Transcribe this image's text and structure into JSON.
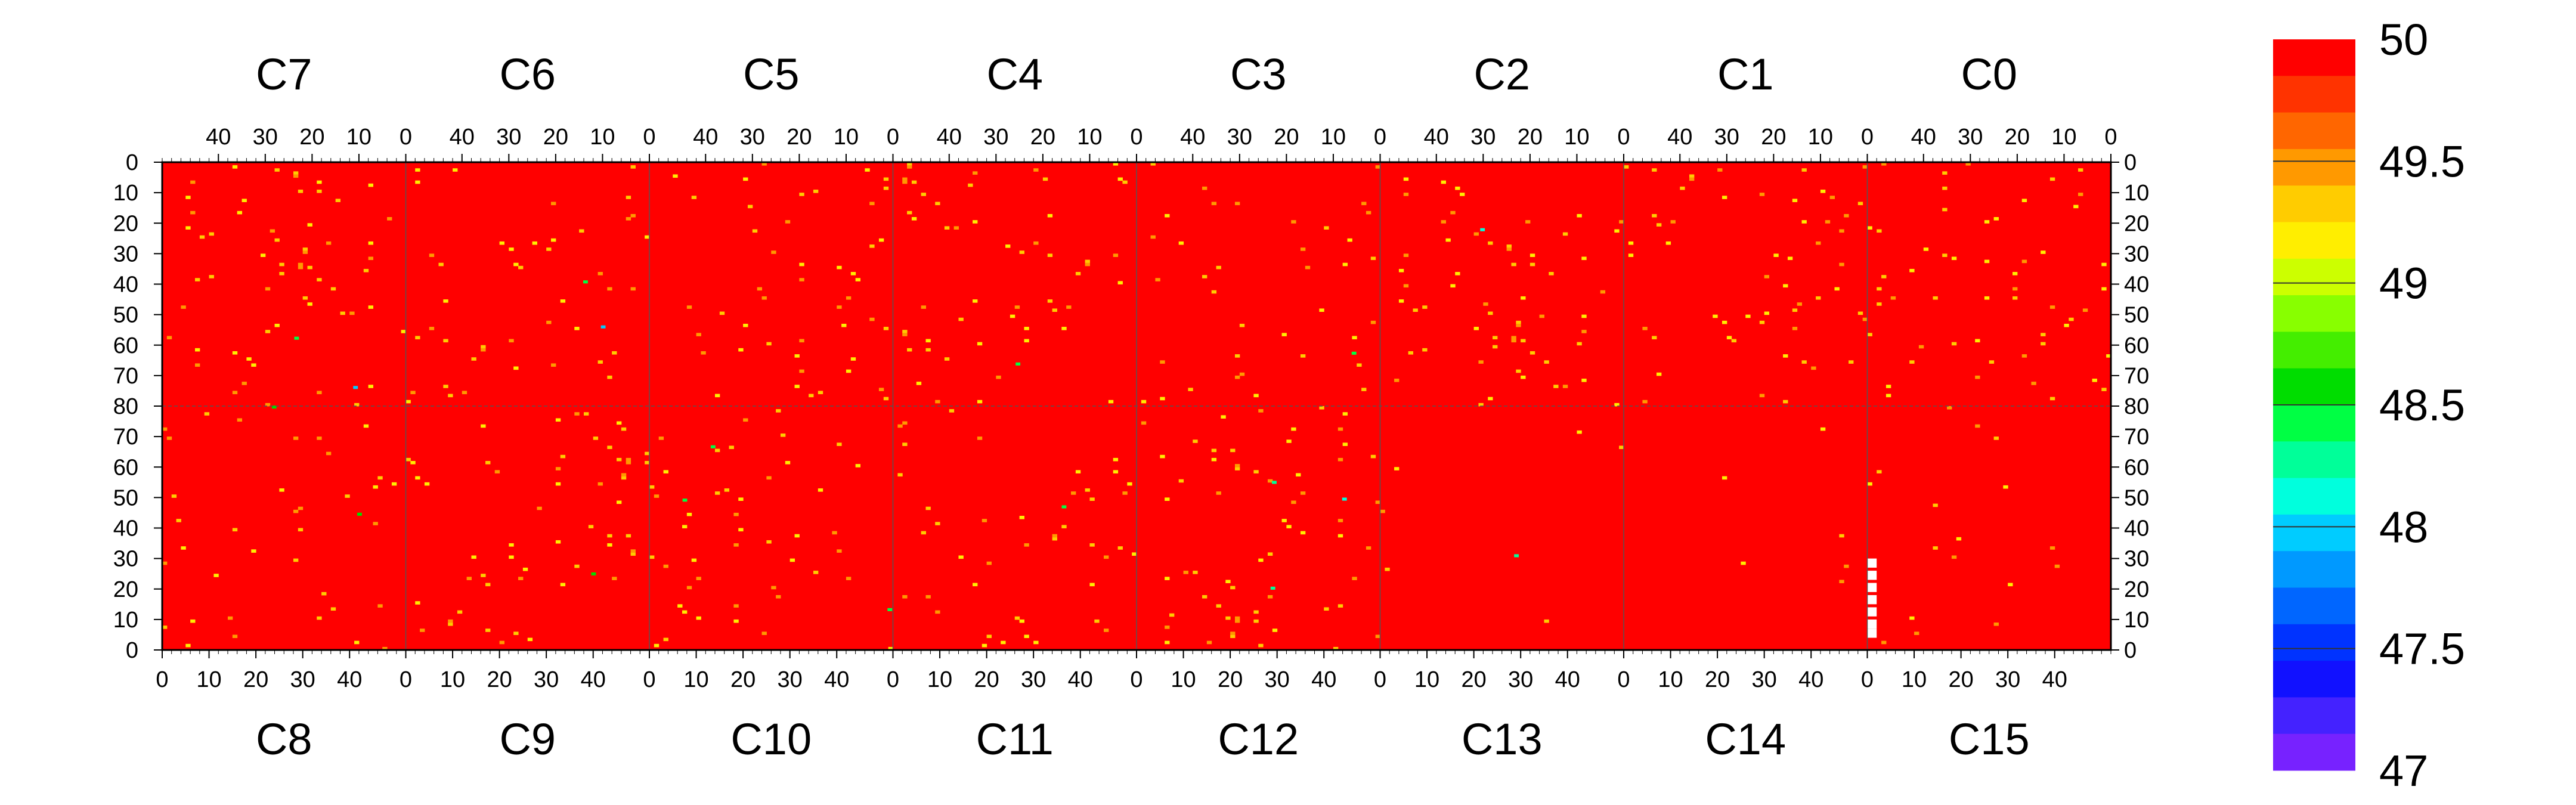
{
  "chart_data": {
    "type": "heatmap",
    "top_chips": [
      "C7",
      "C6",
      "C5",
      "C4",
      "C3",
      "C2",
      "C1",
      "C0"
    ],
    "bottom_chips": [
      "C8",
      "C9",
      "C10",
      "C11",
      "C12",
      "C13",
      "C14",
      "C15"
    ],
    "top_x_ticks": [
      "40",
      "30",
      "20",
      "10",
      "0"
    ],
    "bottom_x_ticks": [
      "0",
      "10",
      "20",
      "30",
      "40"
    ],
    "y_ticks_top_half": [
      "0",
      "10",
      "20",
      "30",
      "40",
      "50",
      "60",
      "70",
      "80"
    ],
    "y_ticks_bottom_half": [
      "70",
      "60",
      "50",
      "40",
      "30",
      "20",
      "10",
      "0"
    ],
    "columns_per_chip": 52,
    "rows_per_half": 80,
    "zrange": [
      47,
      50
    ],
    "colorbar_ticks": [
      "50",
      "49.5",
      "49",
      "48.5",
      "48",
      "47.5",
      "47"
    ],
    "colorbar_colors": [
      "#ff0000",
      "#ff3300",
      "#ff6600",
      "#ff9900",
      "#ffcc00",
      "#ffee00",
      "#ccff00",
      "#88ff00",
      "#44ee00",
      "#00dd00",
      "#00ff44",
      "#00ff99",
      "#00ffdd",
      "#00ccff",
      "#0099ff",
      "#0066ff",
      "#0033ff",
      "#1111ff",
      "#4422ff",
      "#7722ff"
    ],
    "background_value": 50,
    "sparse_pixel_density": [
      0.011,
      0.011,
      0.011,
      0.011,
      0.011,
      0.011,
      0.011,
      0.011,
      0.011,
      0.011,
      0.011,
      0.011,
      0.011,
      0.001,
      0.001,
      0.004
    ],
    "dead_pixels": [
      {
        "chip": "C15",
        "col": 0,
        "row": 6
      },
      {
        "chip": "C15",
        "col": 0,
        "row": 9
      },
      {
        "chip": "C15",
        "col": 0,
        "row": 13
      },
      {
        "chip": "C15",
        "col": 0,
        "row": 17
      },
      {
        "chip": "C15",
        "col": 0,
        "row": 21
      },
      {
        "chip": "C15",
        "col": 0,
        "row": 25
      },
      {
        "chip": "C15",
        "col": 0,
        "row": 29
      }
    ]
  }
}
